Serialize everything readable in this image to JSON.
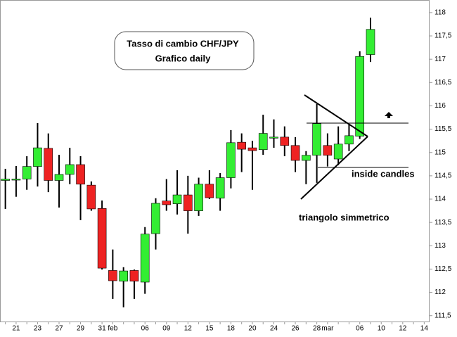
{
  "chart_data": {
    "type": "candlestick",
    "title": "Tasso di cambio CHF/JPY",
    "subtitle": "Grafico daily",
    "annotations": [
      "inside candles",
      "triangolo simmetrico"
    ],
    "up_color": "#33ee33",
    "down_color": "#ee2222",
    "categories": [
      null,
      "21",
      null,
      "23",
      null,
      "27",
      null,
      "29",
      null,
      "31",
      "feb",
      null,
      null,
      "06",
      null,
      "09",
      null,
      "12",
      null,
      "15",
      null,
      "18",
      null,
      "20",
      null,
      "24",
      null,
      "26",
      null,
      "28",
      "mar",
      null,
      null,
      "06",
      null,
      "10",
      null,
      "12",
      null,
      "14"
    ],
    "open": [
      114.4,
      114.42,
      114.43,
      114.7,
      115.09,
      114.4,
      114.53,
      114.74,
      114.3,
      113.8,
      112.47,
      112.24,
      112.47,
      112.22,
      113.26,
      113.96,
      113.9,
      114.09,
      113.75,
      114.32,
      114.02,
      114.46,
      115.22,
      115.1,
      115.06,
      115.32,
      115.33,
      115.15,
      114.83,
      114.94,
      115.15,
      114.86,
      115.18,
      115.35,
      117.1,
      null,
      null,
      null,
      null,
      null
    ],
    "high": [
      114.65,
      114.71,
      114.92,
      115.63,
      115.41,
      114.95,
      115.1,
      114.92,
      114.38,
      113.97,
      112.92,
      112.54,
      112.49,
      113.4,
      114.02,
      114.43,
      114.62,
      114.5,
      114.46,
      114.62,
      114.56,
      115.48,
      115.41,
      115.25,
      115.81,
      115.71,
      115.56,
      115.33,
      115.03,
      116.04,
      115.41,
      115.56,
      115.6,
      117.17,
      117.89,
      null,
      null,
      null,
      null,
      null
    ],
    "low": [
      113.79,
      114.05,
      114.2,
      114.27,
      114.15,
      113.82,
      114.32,
      113.55,
      113.75,
      112.49,
      111.86,
      111.68,
      111.86,
      111.97,
      112.92,
      113.75,
      113.67,
      113.26,
      113.64,
      114.0,
      113.75,
      114.23,
      114.58,
      114.2,
      114.95,
      115.1,
      114.92,
      114.58,
      114.32,
      114.35,
      114.7,
      114.73,
      115.03,
      115.29,
      116.94,
      null,
      null,
      null,
      null,
      null
    ],
    "close": [
      114.43,
      114.43,
      114.7,
      115.1,
      114.4,
      114.53,
      114.74,
      114.32,
      113.79,
      112.52,
      112.25,
      112.46,
      112.24,
      113.25,
      113.91,
      113.88,
      114.09,
      113.75,
      114.32,
      114.03,
      114.46,
      115.21,
      115.07,
      115.04,
      115.41,
      115.33,
      115.15,
      114.83,
      114.94,
      115.62,
      114.94,
      115.18,
      115.36,
      117.06,
      117.64,
      null,
      null,
      null,
      null,
      null
    ],
    "ylim": [
      111.36,
      118.27
    ],
    "yticks": [
      {
        "value": 111.5,
        "label": "111,5"
      },
      112,
      {
        "value": 112.5,
        "label": "112,5"
      },
      113,
      {
        "value": 113.5,
        "label": "113,5"
      },
      114,
      {
        "value": 114.5,
        "label": "114,5"
      },
      115,
      {
        "value": 115.5,
        "label": "115,5"
      },
      116,
      {
        "value": 116.5,
        "label": "116,5"
      },
      117,
      {
        "value": 117.5,
        "label": "117,5"
      },
      118
    ]
  }
}
